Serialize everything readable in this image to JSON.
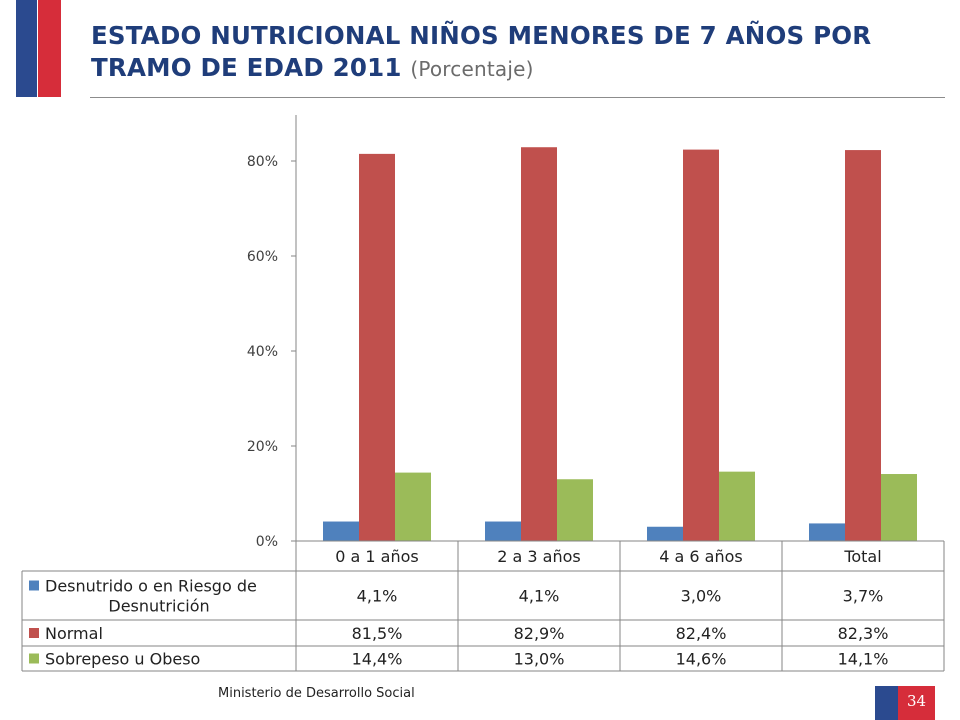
{
  "slide": {
    "title_main": "ESTADO NUTRICIONAL NIÑOS MENORES DE 7 AÑOS POR TRAMO DE EDAD 2011",
    "title_sub": "(Porcentaje)",
    "footer": "Ministerio de Desarrollo Social",
    "page_number": "34"
  },
  "chart_data": {
    "type": "bar",
    "categories": [
      "0 a 1 años",
      "2 a 3 años",
      "4 a 6 años",
      "Total"
    ],
    "series": [
      {
        "name": "Desnutrido o en Riesgo de Desnutrición",
        "name_lines": [
          "Desnutrido o en Riesgo de",
          "Desnutrición"
        ],
        "color": "#4f81bd",
        "values": [
          4.1,
          4.1,
          3.0,
          3.7
        ],
        "labels": [
          "4,1%",
          "4,1%",
          "3,0%",
          "3,7%"
        ]
      },
      {
        "name": "Normal",
        "name_lines": [
          "Normal"
        ],
        "color": "#c0504d",
        "values": [
          81.5,
          82.9,
          82.4,
          82.3
        ],
        "labels": [
          "81,5%",
          "82,9%",
          "82,4%",
          "82,3%"
        ]
      },
      {
        "name": "Sobrepeso u Obeso",
        "name_lines": [
          "Sobrepeso u Obeso"
        ],
        "color": "#9bbb59",
        "values": [
          14.4,
          13.0,
          14.6,
          14.1
        ],
        "labels": [
          "14,4%",
          "13,0%",
          "14,6%",
          "14,1%"
        ]
      }
    ],
    "yticks": [
      0,
      20,
      40,
      60,
      80
    ],
    "ytick_labels": [
      "0%",
      "20%",
      "40%",
      "60%",
      "80%"
    ],
    "ylim": [
      0,
      90
    ],
    "grid": false,
    "legend": "data-table"
  }
}
